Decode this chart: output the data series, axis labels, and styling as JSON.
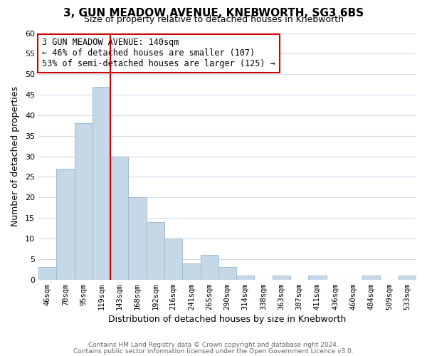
{
  "title": "3, GUN MEADOW AVENUE, KNEBWORTH, SG3 6BS",
  "subtitle": "Size of property relative to detached houses in Knebworth",
  "xlabel": "Distribution of detached houses by size in Knebworth",
  "ylabel": "Number of detached properties",
  "bin_labels": [
    "46sqm",
    "70sqm",
    "95sqm",
    "119sqm",
    "143sqm",
    "168sqm",
    "192sqm",
    "216sqm",
    "241sqm",
    "265sqm",
    "290sqm",
    "314sqm",
    "338sqm",
    "363sqm",
    "387sqm",
    "411sqm",
    "436sqm",
    "460sqm",
    "484sqm",
    "509sqm",
    "533sqm"
  ],
  "bar_values": [
    3,
    27,
    38,
    47,
    30,
    20,
    14,
    10,
    4,
    6,
    3,
    1,
    0,
    1,
    0,
    1,
    0,
    0,
    1,
    0,
    1
  ],
  "bar_color": "#c5d8e8",
  "bar_edge_color": "#a0bcd0",
  "vline_x_index": 4,
  "vline_color": "#cc0000",
  "ylim": [
    0,
    60
  ],
  "yticks": [
    0,
    5,
    10,
    15,
    20,
    25,
    30,
    35,
    40,
    45,
    50,
    55,
    60
  ],
  "annotation_text": "3 GUN MEADOW AVENUE: 140sqm\n← 46% of detached houses are smaller (107)\n53% of semi-detached houses are larger (125) →",
  "annotation_box_color": "#ffffff",
  "annotation_box_edge": "#cc0000",
  "footer_line1": "Contains HM Land Registry data © Crown copyright and database right 2024.",
  "footer_line2": "Contains public sector information licensed under the Open Government Licence v3.0.",
  "background_color": "#ffffff",
  "grid_color": "#d0dce8"
}
